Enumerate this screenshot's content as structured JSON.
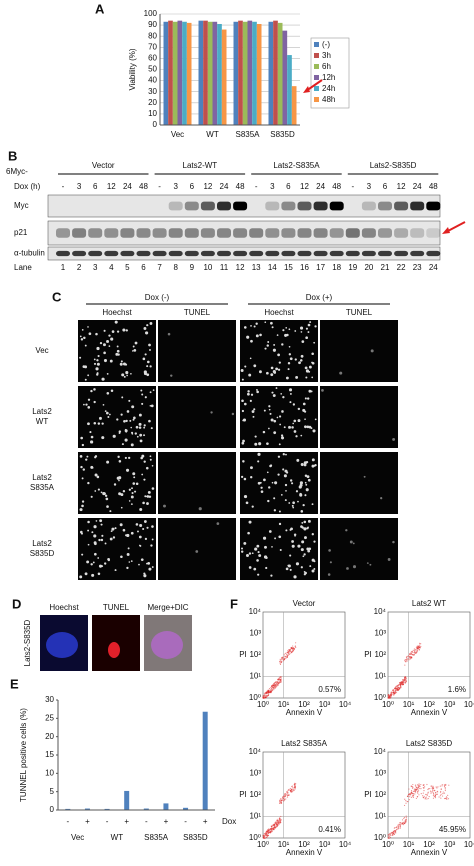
{
  "panel_labels": [
    "A",
    "B",
    "C",
    "D",
    "E",
    "F"
  ],
  "chart_data": [
    {
      "type": "bar",
      "ylabel": "Viability (%)",
      "categories": [
        "Vec",
        "WT",
        "S835A",
        "S835D"
      ],
      "series": [
        {
          "name": "(-)",
          "color": "#4f81bd",
          "values": [
            93,
            94,
            93,
            93
          ]
        },
        {
          "name": "3h",
          "color": "#c0504d",
          "values": [
            94,
            94,
            94,
            94
          ]
        },
        {
          "name": "6h",
          "color": "#9bbb59",
          "values": [
            93,
            93,
            93,
            92
          ]
        },
        {
          "name": "12h",
          "color": "#8064a2",
          "values": [
            94,
            93,
            94,
            85
          ]
        },
        {
          "name": "24h",
          "color": "#4bacc6",
          "values": [
            93,
            91,
            93,
            63
          ]
        },
        {
          "name": "48h",
          "color": "#f79646",
          "values": [
            92,
            86,
            91,
            35
          ]
        }
      ],
      "ylim": [
        0,
        100
      ],
      "yticks": [
        0,
        10,
        20,
        30,
        40,
        50,
        60,
        70,
        80,
        90,
        100
      ],
      "grid": true,
      "legend": "right"
    },
    {
      "type": "bar",
      "ylabel": "TUNNEL positive cells (%)",
      "categories": [
        "-",
        "+",
        "-",
        "+",
        "-",
        "+",
        "-",
        "+"
      ],
      "groups": [
        "Vec",
        "WT",
        "S835A",
        "S835D"
      ],
      "row_label": "Dox",
      "values": [
        0.3,
        0.4,
        0.3,
        5.2,
        0.4,
        1.8,
        0.6,
        26.8
      ],
      "color": "#4f81bd",
      "ylim": [
        0,
        30
      ],
      "yticks": [
        0,
        5,
        10,
        15,
        20,
        25,
        30
      ],
      "grid": false
    }
  ],
  "blot": {
    "construct_label": "6Myc-",
    "constructs": [
      "Vector",
      "Lats2-WT",
      "Lats2-S835A",
      "Lats2-S835D"
    ],
    "time_label": "Dox (h)",
    "times": [
      "-",
      "3",
      "6",
      "12",
      "24",
      "48"
    ],
    "rows": [
      "Myc",
      "p21",
      "α-tubulin"
    ],
    "lane_label": "Lane",
    "lanes": [
      "1",
      "2",
      "3",
      "4",
      "5",
      "6",
      "7",
      "8",
      "9",
      "10",
      "11",
      "12",
      "13",
      "14",
      "15",
      "16",
      "17",
      "18",
      "19",
      "20",
      "21",
      "22",
      "23",
      "24"
    ]
  },
  "microscopy": {
    "conditions": [
      "Dox (-)",
      "Dox (+)"
    ],
    "stains": [
      "Hoechst",
      "TUNEL",
      "Hoechst",
      "TUNEL"
    ],
    "rows": [
      [
        "Vec"
      ],
      [
        "Lats2",
        "WT"
      ],
      [
        "Lats2",
        "S835A"
      ],
      [
        "Lats2",
        "S835D"
      ]
    ]
  },
  "merge": {
    "row": "Lats2-S835D",
    "columns": [
      "Hoechst",
      "TUNEL",
      "Merge+DIC"
    ]
  },
  "flow": {
    "ylabel": "PI",
    "xlabel": "Annexin V",
    "ticks": [
      {
        "value": 1,
        "label": "10⁰"
      },
      {
        "value": 10,
        "label": "10¹"
      },
      {
        "value": 100,
        "label": "10²"
      },
      {
        "value": 1000,
        "label": "10³"
      },
      {
        "value": 10000,
        "label": "10⁴"
      }
    ],
    "plots": [
      {
        "title": "Vector",
        "percent": "0.57%"
      },
      {
        "title": "Lats2 WT",
        "percent": "1.6%"
      },
      {
        "title": "Lats2 S835A",
        "percent": "0.41%"
      },
      {
        "title": "Lats2 S835D",
        "percent": "45.95%"
      }
    ]
  }
}
